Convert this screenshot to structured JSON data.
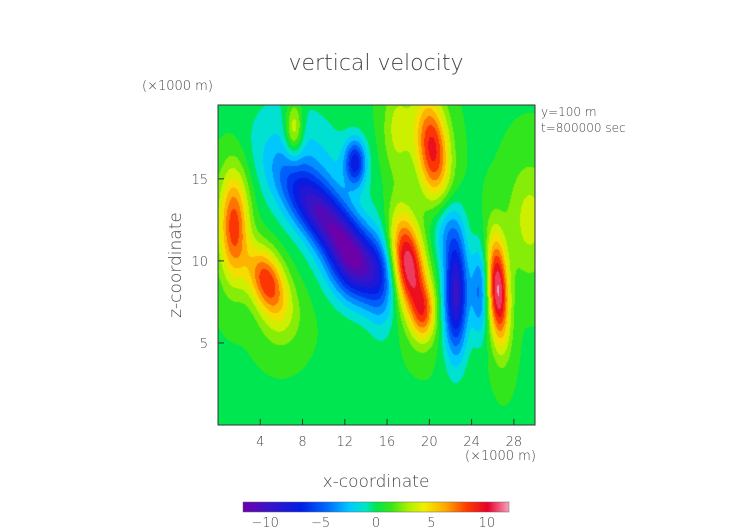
{
  "chart_data": {
    "type": "heatmap",
    "title": "vertical velocity",
    "xlabel": "x-coordinate",
    "ylabel": "z-coordinate",
    "x_unit": "(×1000 m)",
    "y_unit": "(×1000 m)",
    "annotations": [
      "y=100 m",
      "t=800000 sec"
    ],
    "xlim": [
      0,
      30
    ],
    "ylim": [
      0,
      19.5
    ],
    "x_ticks": [
      4,
      8,
      12,
      16,
      20,
      24,
      28
    ],
    "y_ticks": [
      5,
      10,
      15
    ],
    "colorbar": {
      "range": [
        -12,
        12
      ],
      "ticks": [
        -10,
        -5,
        0,
        5,
        10
      ],
      "tick_labels": [
        "−10",
        "−5",
        "0",
        "5",
        "10"
      ]
    },
    "background_value": 0.5,
    "features": [
      {
        "x": 1.5,
        "z": 12.2,
        "value": 8,
        "sx": 1.0,
        "sz": 2.4,
        "angle": 0
      },
      {
        "x": 4.6,
        "z": 8.8,
        "value": 8,
        "sx": 1.1,
        "sz": 1.6,
        "angle": 35
      },
      {
        "x": 7.2,
        "z": 18.0,
        "value": 5,
        "sx": 0.6,
        "sz": 1.2,
        "angle": 0
      },
      {
        "x": 8.5,
        "z": 15.5,
        "value": -3,
        "sx": 4.0,
        "sz": 2.5,
        "angle": -35
      },
      {
        "x": 10.2,
        "z": 12.5,
        "value": -9,
        "sx": 3.3,
        "sz": 1.2,
        "angle": -35
      },
      {
        "x": 13.0,
        "z": 9.5,
        "value": -8,
        "sx": 2.0,
        "sz": 1.5,
        "angle": -30
      },
      {
        "x": 13.0,
        "z": 16.0,
        "value": -7,
        "sx": 0.7,
        "sz": 1.0,
        "angle": 0
      },
      {
        "x": 15.5,
        "z": 9.0,
        "value": -3,
        "sx": 1.0,
        "sz": 2.5,
        "angle": 0
      },
      {
        "x": 18.0,
        "z": 9.7,
        "value": 11,
        "sx": 1.1,
        "sz": 2.3,
        "angle": 15
      },
      {
        "x": 19.5,
        "z": 6.8,
        "value": 5,
        "sx": 0.8,
        "sz": 1.2,
        "angle": 0
      },
      {
        "x": 20.3,
        "z": 16.8,
        "value": 9,
        "sx": 1.1,
        "sz": 2.3,
        "angle": 10
      },
      {
        "x": 22.5,
        "z": 8.0,
        "value": -10,
        "sx": 0.8,
        "sz": 2.6,
        "angle": 0
      },
      {
        "x": 21.5,
        "z": 12.0,
        "value": -3,
        "sx": 1.0,
        "sz": 1.5,
        "angle": 0
      },
      {
        "x": 26.5,
        "z": 8.2,
        "value": 11,
        "sx": 0.7,
        "sz": 2.3,
        "angle": 5
      },
      {
        "x": 24.8,
        "z": 8.2,
        "value": -5,
        "sx": 0.6,
        "sz": 2.0,
        "angle": 0
      },
      {
        "x": 29.5,
        "z": 12.5,
        "value": 3,
        "sx": 1.5,
        "sz": 2.5,
        "angle": 0
      },
      {
        "x": 17.0,
        "z": 18.0,
        "value": 3,
        "sx": 1.0,
        "sz": 2.0,
        "angle": 0
      },
      {
        "x": 6.0,
        "z": 6.5,
        "value": 2,
        "sx": 1.5,
        "sz": 1.5,
        "angle": 0
      }
    ]
  }
}
